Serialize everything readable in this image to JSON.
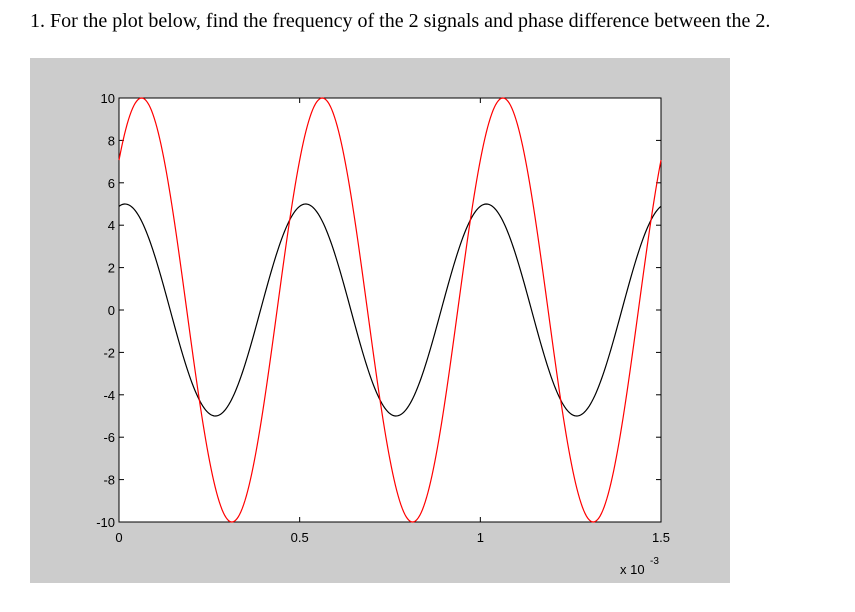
{
  "question": {
    "number": "1.",
    "text": "For the plot below, find the frequency of the 2 signals and phase difference between the 2."
  },
  "chart_data": {
    "type": "line",
    "title": "",
    "xlabel": "",
    "ylabel": "",
    "x_multiplier_label": "x 10",
    "x_multiplier_exponent": "-3",
    "xlim": [
      0,
      0.0015
    ],
    "ylim": [
      -10,
      10
    ],
    "xticks": [
      0,
      0.0005,
      0.001,
      0.0015
    ],
    "xtick_labels": [
      "0",
      "0.5",
      "1",
      "1.5"
    ],
    "yticks": [
      -10,
      -8,
      -6,
      -4,
      -2,
      0,
      2,
      4,
      6,
      8,
      10
    ],
    "ytick_labels": [
      "-10",
      "-8",
      "-6",
      "-4",
      "-2",
      "0",
      "2",
      "4",
      "6",
      "8",
      "10"
    ],
    "grid": false,
    "series": [
      {
        "color": "#000000",
        "amplitude": 5,
        "frequency_hz": 2000,
        "phase_deg": 78,
        "x_start": 0,
        "x_end": 0.0015
      },
      {
        "color": "#ff0000",
        "amplitude": 10,
        "frequency_hz": 2000,
        "phase_deg": 45,
        "x_start": 0,
        "x_end": 0.0015
      }
    ]
  }
}
